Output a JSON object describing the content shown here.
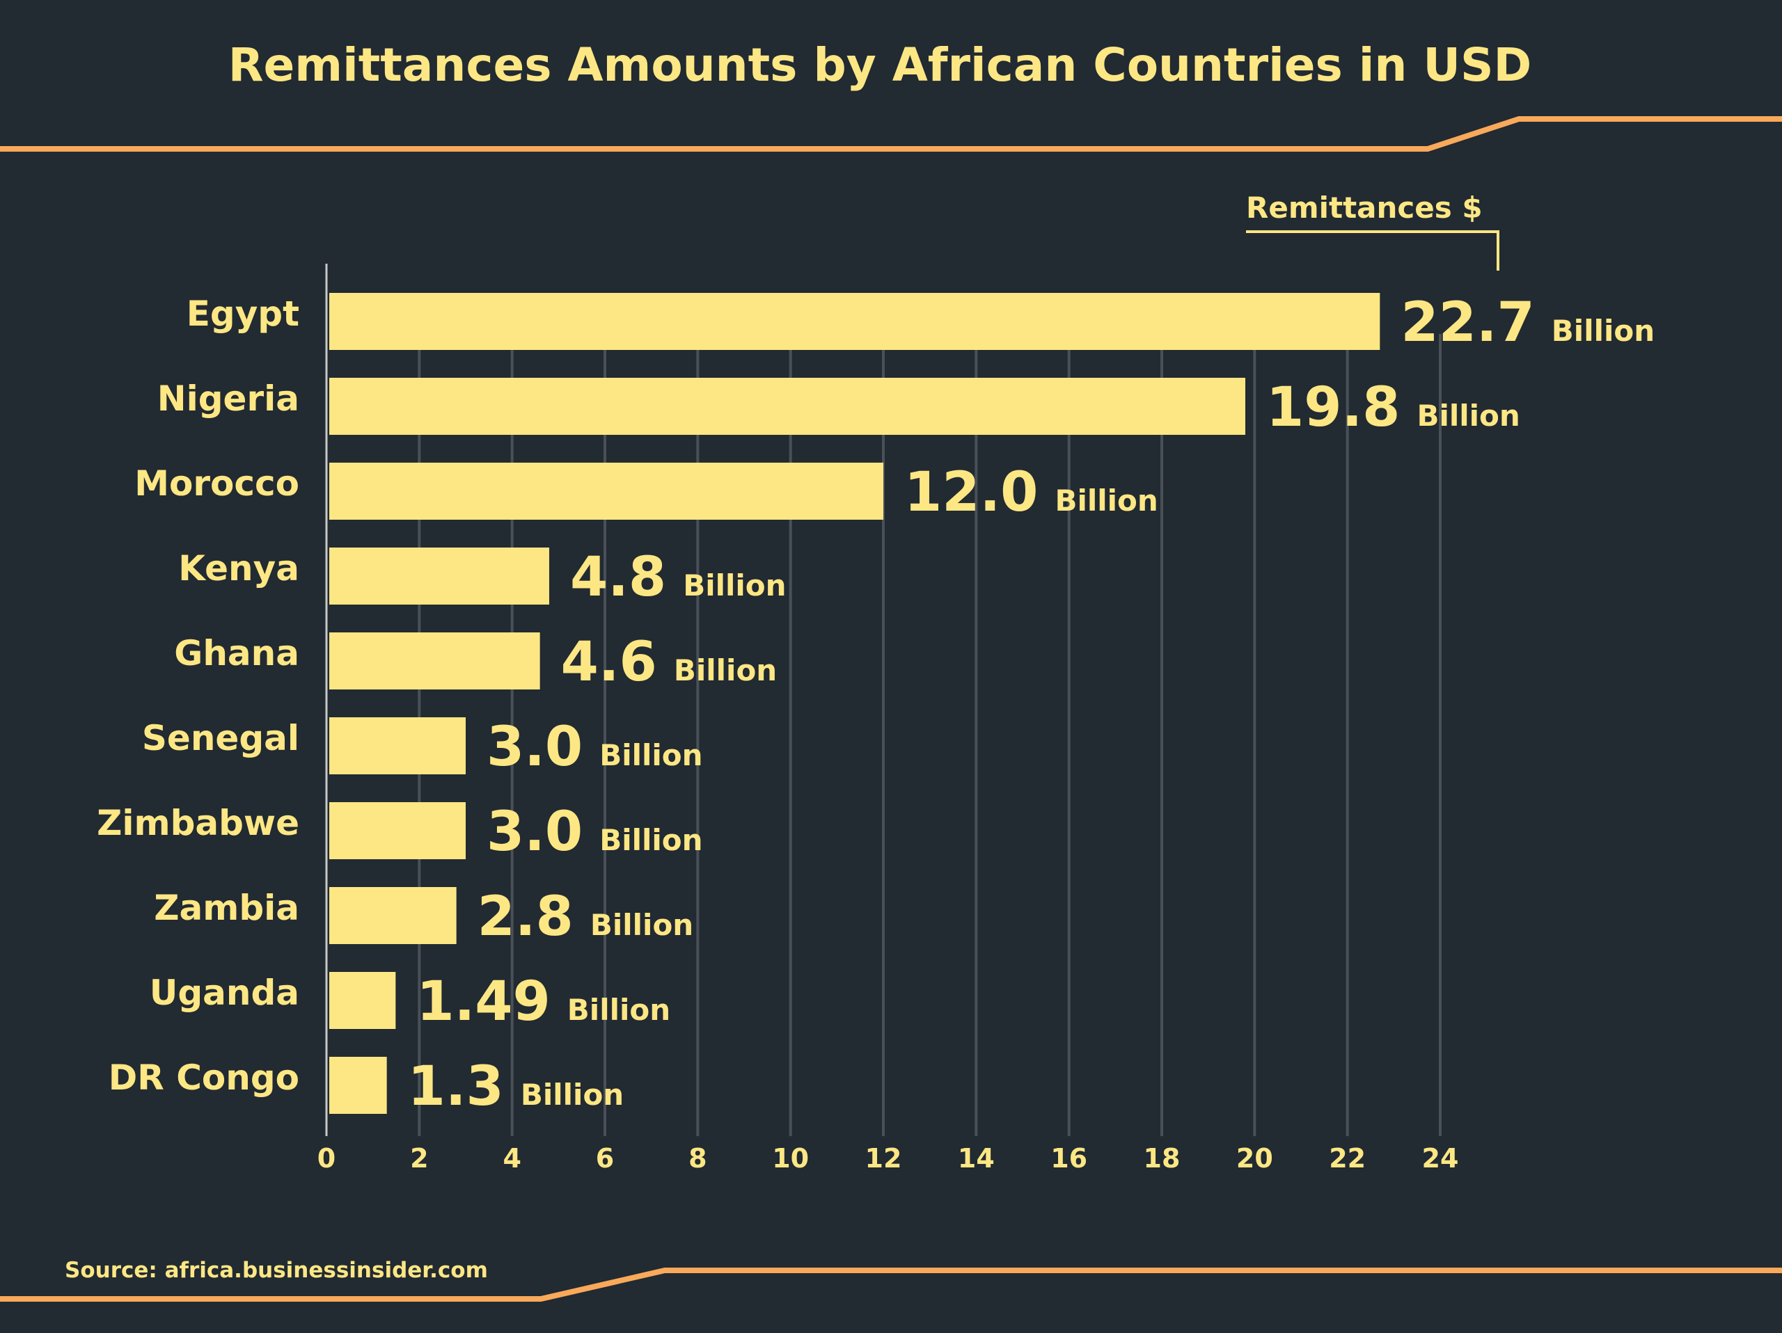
{
  "chart_data": {
    "type": "bar",
    "orientation": "horizontal",
    "title": "Remittances Amounts by African Countries in USD",
    "legend": {
      "label": "Remittances $",
      "placement": "top-right"
    },
    "categories": [
      "Egypt",
      "Nigeria",
      "Morocco",
      "Kenya",
      "Ghana",
      "Senegal",
      "Zimbabwe",
      "Zambia",
      "Uganda",
      "DR Congo"
    ],
    "values": [
      22.7,
      19.8,
      12.0,
      4.8,
      4.6,
      3.0,
      3.0,
      2.8,
      1.49,
      1.3
    ],
    "value_labels": [
      "22.7",
      "19.8",
      "12.0",
      "4.8",
      "4.6",
      "3.0",
      "3.0",
      "2.8",
      "1.49",
      "1.3"
    ],
    "unit_label": "Billion",
    "xlim": [
      0,
      24
    ],
    "x_ticks": [
      "0",
      "2",
      "4",
      "6",
      "8",
      "10",
      "12",
      "14",
      "16",
      "18",
      "20",
      "22",
      "24"
    ],
    "grid": true,
    "source": "Source: africa.businessinsider.com",
    "colors": {
      "background": "#222a32",
      "bar": "#fde784",
      "text": "#fde784",
      "accent_line": "#f9a95a",
      "grid": "#4a5058"
    }
  }
}
